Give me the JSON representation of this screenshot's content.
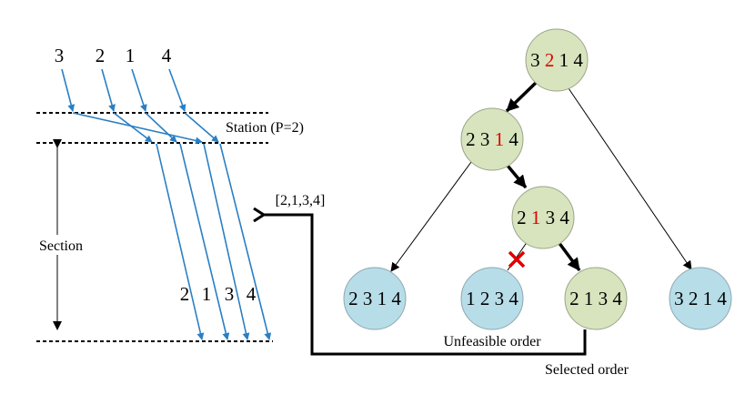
{
  "left": {
    "top_labels": [
      "3",
      "2",
      "1",
      "4"
    ],
    "station_label": "Station (P=2)",
    "section_label": "Section",
    "bottom_labels": [
      "2",
      "1",
      "3",
      "4"
    ],
    "output": "[2,1,3,4]"
  },
  "tree": {
    "nodes": [
      {
        "parts": [
          "3",
          "2",
          "1 4"
        ]
      },
      {
        "parts": [
          "2 3",
          "1",
          "4"
        ]
      },
      {
        "parts": [
          "2",
          "1",
          "3 4"
        ]
      },
      {
        "label": "2 3 1 4"
      },
      {
        "label": "1 2 3 4",
        "note": "Unfeasible order"
      },
      {
        "label": "2 1 3 4",
        "note": "Selected order"
      },
      {
        "label": "3 2 1 4"
      }
    ]
  }
}
